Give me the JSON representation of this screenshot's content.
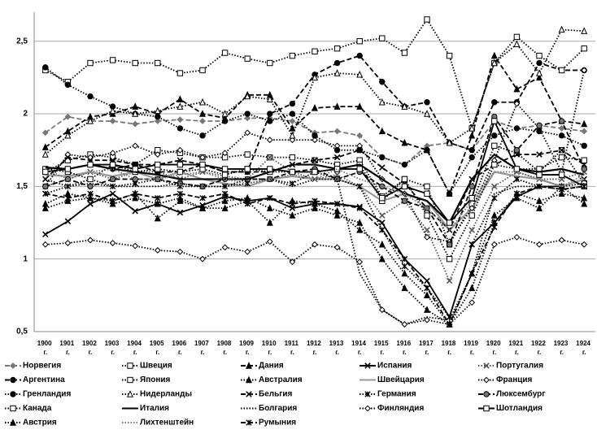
{
  "chart_data": {
    "type": "line",
    "categories": [
      "1900 г.",
      "1901 г.",
      "1902 г.",
      "1903 г.",
      "1904 г.",
      "1905 г.",
      "1906 г.",
      "1907 г.",
      "1908 г.",
      "1909 г.",
      "1910 г.",
      "1911 г.",
      "1912 г.",
      "1913 г.",
      "1914 г.",
      "1915 г.",
      "1916 г.",
      "1917 г.",
      "1918 г.",
      "1919 г.",
      "1920 г.",
      "1921 г.",
      "1922 г.",
      "1923 г.",
      "1924 г."
    ],
    "ylim": [
      0.5,
      2.7
    ],
    "yticks": [
      {
        "value": 0.5,
        "label": "0,5"
      },
      1,
      {
        "value": 1.5,
        "label": "1,5"
      },
      2,
      {
        "value": 2.5,
        "label": "2,5"
      }
    ],
    "grid": true,
    "series": [
      {
        "name": "Норвегия",
        "color": "#777777",
        "marker": "diamond",
        "marker_fill": "#777777",
        "dash": "dashed",
        "values": [
          1.87,
          1.98,
          1.95,
          1.95,
          1.93,
          1.95,
          1.96,
          1.95,
          1.95,
          1.97,
          1.97,
          1.95,
          1.87,
          1.88,
          1.85,
          1.7,
          1.65,
          1.78,
          1.8,
          1.75,
          1.95,
          1.9,
          1.92,
          1.9,
          1.88
        ]
      },
      {
        "name": "Швеция",
        "color": "#000000",
        "marker": "square",
        "marker_fill": "#ffffff",
        "dash": "dotted",
        "values": [
          1.6,
          1.68,
          1.72,
          1.7,
          1.65,
          1.75,
          1.73,
          1.7,
          1.7,
          1.72,
          1.7,
          1.7,
          1.68,
          1.65,
          1.68,
          1.43,
          1.55,
          1.5,
          1.1,
          1.38,
          1.78,
          1.73,
          1.6,
          1.75,
          1.52
        ]
      },
      {
        "name": "Дания",
        "color": "#000000",
        "marker": "triangle",
        "marker_fill": "#000000",
        "dash": "dashed",
        "values": [
          1.77,
          1.88,
          1.98,
          2.0,
          2.05,
          2.0,
          2.1,
          2.0,
          1.97,
          2.13,
          2.13,
          1.9,
          2.04,
          2.05,
          2.05,
          1.88,
          1.8,
          1.75,
          1.45,
          1.85,
          2.4,
          2.17,
          2.25,
          1.95,
          1.93
        ]
      },
      {
        "name": "Испания",
        "color": "#000000",
        "marker": "x",
        "marker_fill": "#000000",
        "dash": "solid",
        "values": [
          1.17,
          1.26,
          1.38,
          1.45,
          1.33,
          1.38,
          1.32,
          1.37,
          1.43,
          1.4,
          1.42,
          1.35,
          1.38,
          1.38,
          1.36,
          1.25,
          1.0,
          0.85,
          0.6,
          1.1,
          1.25,
          1.43,
          1.5,
          1.5,
          1.55
        ]
      },
      {
        "name": "Португалия",
        "color": "#555555",
        "marker": "x",
        "marker_fill": "#555555",
        "dash": "dotted",
        "values": [
          1.5,
          1.55,
          1.6,
          1.55,
          1.6,
          1.6,
          1.55,
          1.6,
          1.57,
          1.55,
          1.7,
          1.6,
          1.55,
          1.58,
          1.5,
          1.3,
          1.4,
          1.2,
          0.85,
          1.2,
          1.5,
          1.6,
          1.55,
          1.55,
          1.6
        ]
      },
      {
        "name": "Аргентина",
        "color": "#000000",
        "marker": "circle",
        "marker_fill": "#000000",
        "dash": "dashed",
        "values": [
          1.6,
          1.62,
          1.65,
          1.62,
          1.65,
          1.6,
          1.6,
          1.65,
          1.6,
          1.6,
          2.0,
          2.07,
          2.27,
          2.35,
          2.4,
          2.22,
          2.05,
          2.08,
          1.8,
          1.75,
          2.08,
          2.08,
          2.35,
          2.3,
          2.3
        ]
      },
      {
        "name": "Япония",
        "color": "#000000",
        "marker": "square",
        "marker_fill": "#ffffff",
        "dash": "dotted",
        "values": [
          2.3,
          2.22,
          2.35,
          2.37,
          2.35,
          2.35,
          2.28,
          2.3,
          2.42,
          2.38,
          2.35,
          2.4,
          2.43,
          2.45,
          2.5,
          2.52,
          2.42,
          2.65,
          2.4,
          1.9,
          2.35,
          2.53,
          2.4,
          2.3,
          2.45
        ]
      },
      {
        "name": "Австралия",
        "color": "#000000",
        "marker": "triangle",
        "marker_fill": "#000000",
        "dash": "dotted",
        "values": [
          1.35,
          1.4,
          1.42,
          1.4,
          1.45,
          1.28,
          1.4,
          1.35,
          1.35,
          1.4,
          1.25,
          1.4,
          1.38,
          1.33,
          1.2,
          1.1,
          0.9,
          0.75,
          0.55,
          0.9,
          1.3,
          1.42,
          1.35,
          1.5,
          1.38
        ]
      },
      {
        "name": "Швейцария",
        "color": "#999999",
        "marker": "none",
        "marker_fill": "#999999",
        "dash": "solid",
        "values": [
          1.58,
          1.57,
          1.6,
          1.57,
          1.6,
          1.55,
          1.6,
          1.55,
          1.52,
          1.5,
          1.55,
          1.57,
          1.55,
          1.55,
          1.5,
          1.4,
          1.45,
          1.4,
          1.2,
          1.35,
          1.6,
          1.57,
          1.55,
          1.5,
          1.55
        ]
      },
      {
        "name": "Франция",
        "color": "#000000",
        "marker": "diamond",
        "marker_fill": "#ffffff",
        "dash": "dotted",
        "values": [
          1.5,
          1.72,
          1.7,
          1.73,
          1.78,
          1.72,
          1.75,
          1.7,
          1.73,
          1.87,
          1.82,
          1.82,
          1.82,
          1.78,
          1.78,
          1.55,
          1.45,
          1.15,
          1.12,
          1.35,
          1.68,
          2.07,
          1.9,
          1.6,
          2.3
        ]
      },
      {
        "name": "Гренландия",
        "color": "#000000",
        "marker": "circle",
        "marker_fill": "#000000",
        "dash": "dotted",
        "values": [
          2.32,
          2.2,
          2.12,
          2.05,
          2.0,
          1.98,
          1.9,
          1.85,
          1.95,
          2.0,
          1.95,
          2.0,
          1.85,
          1.75,
          1.75,
          1.7,
          1.65,
          1.75,
          1.45,
          1.7,
          1.85,
          1.9,
          1.88,
          1.85,
          1.78
        ]
      },
      {
        "name": "Нидерланды",
        "color": "#000000",
        "marker": "triangle",
        "marker_fill": "#ffffff",
        "dash": "dotted",
        "values": [
          1.72,
          1.85,
          1.95,
          2.02,
          2.0,
          2.02,
          2.05,
          2.08,
          2.0,
          2.12,
          2.1,
          1.85,
          2.25,
          2.28,
          2.27,
          2.08,
          2.05,
          2.0,
          1.8,
          1.9,
          2.35,
          2.48,
          2.28,
          2.58,
          2.57
        ]
      },
      {
        "name": "Бельгия",
        "color": "#000000",
        "marker": "x",
        "marker_fill": "#000000",
        "dash": "dashed",
        "values": [
          1.55,
          1.7,
          1.68,
          1.68,
          1.65,
          1.65,
          1.68,
          1.65,
          1.6,
          1.6,
          1.6,
          1.65,
          1.68,
          1.7,
          1.75,
          1.63,
          1.52,
          1.35,
          1.2,
          1.55,
          1.65,
          1.72,
          1.72,
          1.75,
          1.65
        ]
      },
      {
        "name": "Германия",
        "color": "#000000",
        "marker": "star",
        "marker_fill": "#000000",
        "dash": "dotted",
        "values": [
          1.45,
          1.5,
          1.55,
          1.5,
          1.52,
          1.55,
          1.5,
          1.5,
          1.5,
          1.52,
          1.55,
          1.52,
          1.6,
          1.55,
          1.5,
          1.2,
          0.95,
          0.8,
          0.6,
          1.1,
          1.42,
          1.55,
          1.5,
          1.48,
          1.5
        ]
      },
      {
        "name": "Люксембург",
        "color": "#000000",
        "marker": "circle",
        "marker_fill": "#777777",
        "dash": "dashed",
        "values": [
          1.5,
          1.55,
          1.5,
          1.55,
          1.55,
          1.55,
          1.52,
          1.5,
          1.55,
          1.55,
          1.55,
          1.6,
          1.62,
          1.55,
          1.6,
          1.5,
          1.4,
          1.35,
          1.1,
          1.5,
          1.98,
          1.75,
          1.92,
          1.95,
          1.62
        ]
      },
      {
        "name": "Канада",
        "color": "#000000",
        "marker": "square",
        "marker_fill": "#ffffff",
        "dash": "dotted",
        "values": [
          1.62,
          1.6,
          1.55,
          1.65,
          1.6,
          1.62,
          1.6,
          1.62,
          1.58,
          1.62,
          1.6,
          1.6,
          1.6,
          1.62,
          1.65,
          1.4,
          1.55,
          1.3,
          1.0,
          1.3,
          1.65,
          1.62,
          1.62,
          1.7,
          1.68
        ]
      },
      {
        "name": "Италия",
        "color": "#000000",
        "marker": "none",
        "marker_fill": "#000000",
        "dash": "solid",
        "values": [
          1.63,
          1.62,
          1.65,
          1.62,
          1.6,
          1.58,
          1.55,
          1.55,
          1.55,
          1.55,
          1.6,
          1.65,
          1.65,
          1.62,
          1.65,
          1.55,
          1.45,
          1.4,
          1.25,
          1.55,
          1.72,
          1.62,
          1.6,
          1.62,
          1.58
        ]
      },
      {
        "name": "Болгария",
        "color": "#000000",
        "marker": "none",
        "marker_fill": "#000000",
        "dash": "dotted",
        "values": [
          1.55,
          1.5,
          1.52,
          1.5,
          1.5,
          1.5,
          1.52,
          1.5,
          1.5,
          1.55,
          1.55,
          1.5,
          1.55,
          1.55,
          0.9,
          0.65,
          0.55,
          0.6,
          0.58,
          0.9,
          1.45,
          1.5,
          1.5,
          1.5,
          1.52
        ]
      },
      {
        "name": "Финляндия",
        "color": "#000000",
        "marker": "diamond",
        "marker_fill": "#ffffff",
        "dash": "dotted",
        "values": [
          1.1,
          1.11,
          1.13,
          1.11,
          1.09,
          1.06,
          1.05,
          1.0,
          1.08,
          1.05,
          1.12,
          0.98,
          1.1,
          1.08,
          0.98,
          0.65,
          0.55,
          0.58,
          0.55,
          0.7,
          1.1,
          1.15,
          1.1,
          1.13,
          1.1
        ]
      },
      {
        "name": "Шотландия",
        "color": "#000000",
        "marker": "square",
        "marker_fill": "#ffffff",
        "dash": "solid",
        "values": [
          1.6,
          1.62,
          1.65,
          1.65,
          1.62,
          1.65,
          1.65,
          1.65,
          1.62,
          1.62,
          1.62,
          1.6,
          1.6,
          1.62,
          1.62,
          1.42,
          1.5,
          1.45,
          1.25,
          1.42,
          1.95,
          1.62,
          1.58,
          1.58,
          1.5
        ]
      },
      {
        "name": "Австрия",
        "color": "#000000",
        "marker": "triangle",
        "marker_fill": "#000000",
        "dash": "dotted",
        "values": [
          1.38,
          1.45,
          1.42,
          1.38,
          1.42,
          1.38,
          1.42,
          1.35,
          1.4,
          1.42,
          1.35,
          1.3,
          1.35,
          1.3,
          1.25,
          1.0,
          0.8,
          0.65,
          0.55,
          0.8,
          1.25,
          1.45,
          1.4,
          1.45,
          1.42
        ]
      },
      {
        "name": "Лихтенштейн",
        "color": "#777777",
        "marker": "none",
        "marker_fill": "#777777",
        "dash": "dotted",
        "values": [
          1.62,
          1.55,
          1.6,
          1.62,
          1.55,
          1.55,
          1.58,
          1.6,
          1.55,
          1.52,
          1.55,
          1.58,
          1.55,
          1.62,
          1.55,
          1.5,
          1.45,
          1.35,
          1.2,
          1.4,
          1.6,
          1.6,
          1.55,
          1.5,
          1.58
        ]
      },
      {
        "name": "Румыния",
        "color": "#000000",
        "marker": "star",
        "marker_fill": "#000000",
        "dash": "dashed",
        "values": [
          1.45,
          1.42,
          1.45,
          1.4,
          1.45,
          1.42,
          1.45,
          1.42,
          1.45,
          1.38,
          1.42,
          1.38,
          1.4,
          1.38,
          1.35,
          1.2,
          1.0,
          0.8,
          0.55,
          0.9,
          1.22,
          1.45,
          1.5,
          1.48,
          1.5
        ]
      }
    ]
  }
}
